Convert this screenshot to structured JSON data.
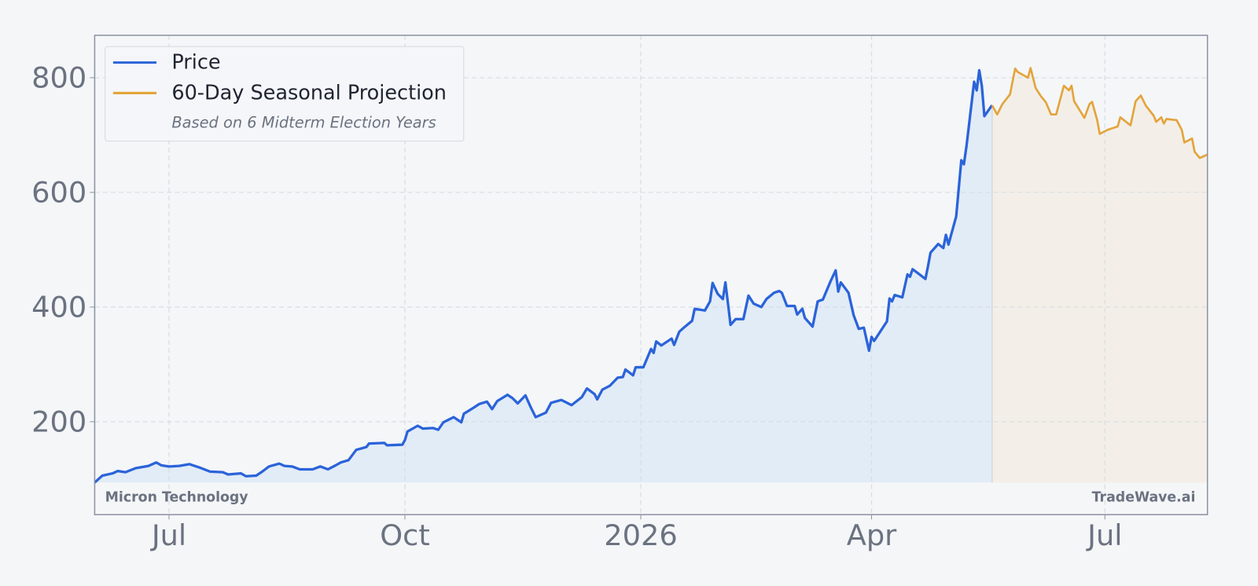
{
  "chart_data": {
    "type": "line",
    "xlim": [
      0,
      434
    ],
    "xticks": [
      {
        "value": 29,
        "label": "Jul"
      },
      {
        "value": 121,
        "label": "Oct"
      },
      {
        "value": 213,
        "label": "2026"
      },
      {
        "value": 303,
        "label": "Apr"
      },
      {
        "value": 394,
        "label": "Jul"
      }
    ],
    "ylim": [
      38,
      874
    ],
    "yticks": [
      200,
      400,
      600,
      800
    ],
    "grid": true,
    "legend": "upper left",
    "legend_note": "Based on 6 Midterm Election Years",
    "annotations": [
      "Micron Technology",
      "TradeWave.ai"
    ],
    "series": [
      {
        "name": "Price",
        "color": "#2b63d9",
        "fill": "#e1ecf7",
        "x": [
          0,
          3,
          7,
          9,
          12,
          16,
          21,
          24,
          26,
          29,
          33,
          37,
          41,
          45,
          50,
          52,
          57,
          59,
          63,
          65,
          68,
          72,
          74,
          77,
          80,
          85,
          88,
          91,
          94,
          96,
          99,
          102,
          106,
          107,
          113,
          114,
          120,
          121,
          122,
          126,
          128,
          132,
          134,
          136,
          140,
          143,
          144,
          148,
          150,
          153,
          155,
          157,
          161,
          163,
          165,
          168,
          170,
          172,
          176,
          178,
          182,
          186,
          190,
          192,
          195,
          196,
          198,
          201,
          204,
          206,
          207,
          210,
          211,
          214,
          217,
          218,
          219,
          221,
          225,
          226,
          228,
          230,
          233,
          234,
          238,
          240,
          241,
          243,
          245,
          246,
          248,
          250,
          253,
          255,
          257,
          260,
          262,
          265,
          267,
          268,
          270,
          273,
          274,
          276,
          277,
          280,
          282,
          284,
          287,
          289,
          290,
          291,
          294,
          296,
          298,
          300,
          302,
          303,
          304,
          309,
          310,
          311,
          312,
          315,
          317,
          318,
          319,
          322,
          324,
          325,
          326,
          329,
          331,
          332,
          333,
          336,
          338,
          339,
          340,
          343,
          344,
          345,
          346,
          347,
          350
        ],
        "values": [
          94,
          106,
          110,
          114,
          112,
          119,
          123,
          129,
          124,
          122,
          123,
          126,
          120,
          113,
          112,
          108,
          110,
          105,
          106,
          112,
          122,
          127,
          123,
          122,
          117,
          117,
          122,
          117,
          124,
          129,
          133,
          151,
          156,
          162,
          163,
          159,
          160,
          168,
          183,
          193,
          188,
          189,
          186,
          199,
          208,
          199,
          214,
          225,
          231,
          235,
          222,
          236,
          247,
          241,
          232,
          246,
          226,
          208,
          216,
          233,
          238,
          229,
          243,
          258,
          248,
          239,
          256,
          263,
          277,
          278,
          291,
          281,
          295,
          295,
          327,
          320,
          340,
          333,
          345,
          334,
          357,
          365,
          376,
          397,
          394,
          410,
          442,
          423,
          414,
          443,
          369,
          379,
          379,
          420,
          406,
          400,
          414,
          425,
          428,
          425,
          402,
          402,
          387,
          397,
          381,
          366,
          410,
          413,
          445,
          464,
          427,
          443,
          425,
          386,
          362,
          364,
          324,
          348,
          341,
          375,
          415,
          410,
          421,
          417,
          457,
          453,
          466,
          456,
          449,
          471,
          495,
          510,
          503,
          526,
          509,
          558,
          656,
          649,
          680,
          793,
          778,
          813,
          786,
          733,
          752
        ]
      },
      {
        "name": "60-Day Seasonal Projection",
        "color": "#e3a43b",
        "fill": "#f3efe8",
        "x": [
          350,
          352,
          354,
          357,
          359,
          360,
          364,
          365,
          367,
          369,
          371,
          373,
          375,
          378,
          380,
          381,
          382,
          386,
          388,
          389,
          391,
          392,
          395,
          399,
          400,
          404,
          406,
          408,
          410,
          413,
          414,
          416,
          417,
          418,
          422,
          424,
          425,
          428,
          429,
          431,
          434
        ],
        "values": [
          752,
          736,
          754,
          771,
          816,
          810,
          800,
          817,
          782,
          768,
          757,
          736,
          736,
          786,
          778,
          786,
          759,
          730,
          754,
          758,
          726,
          702,
          709,
          715,
          731,
          717,
          759,
          769,
          751,
          734,
          723,
          731,
          720,
          728,
          726,
          709,
          687,
          694,
          671,
          660,
          666
        ]
      }
    ]
  }
}
